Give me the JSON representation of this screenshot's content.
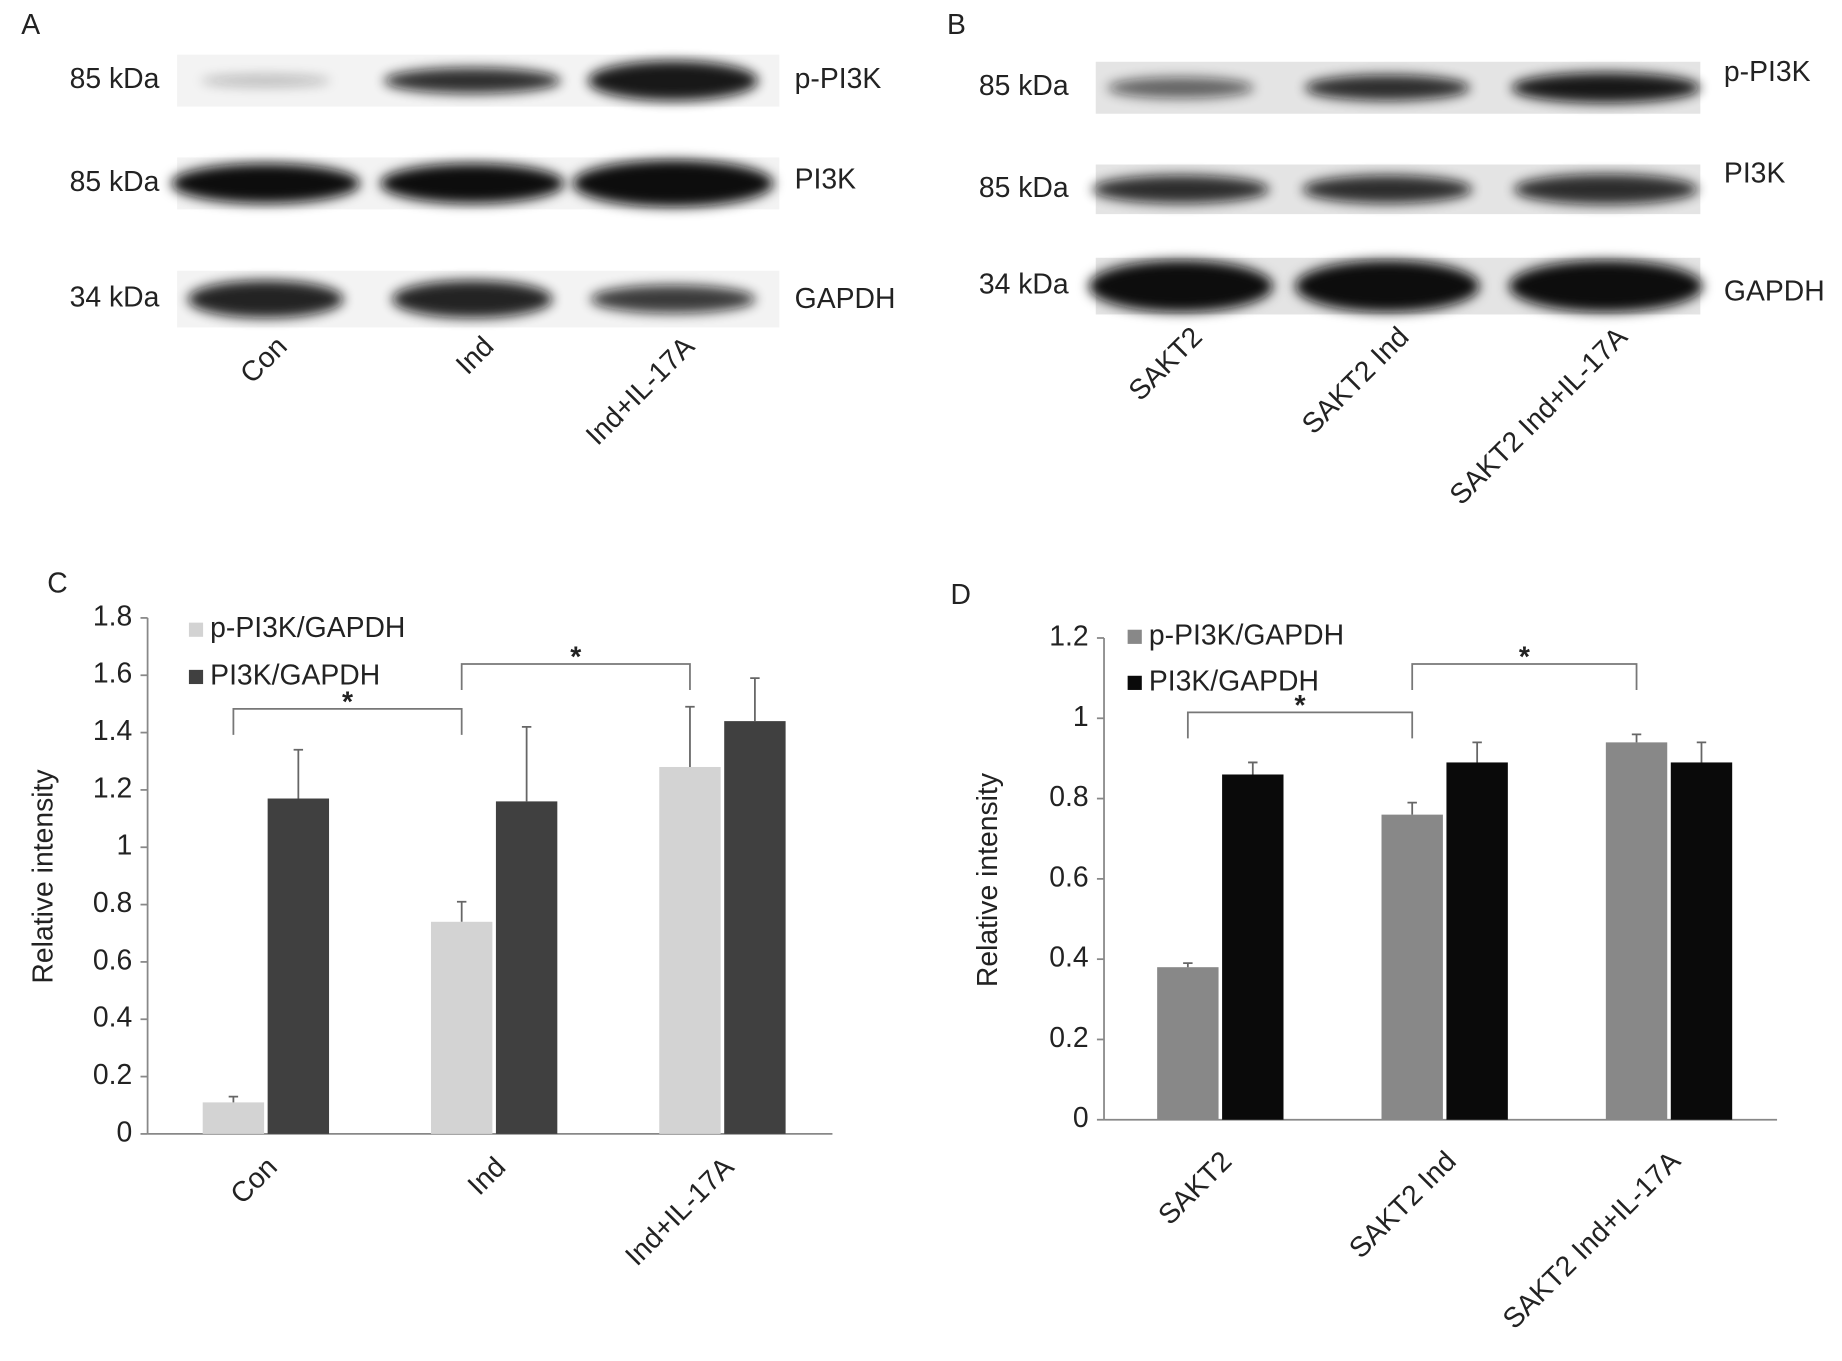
{
  "panels": {
    "A": {
      "label": "A",
      "rows": [
        {
          "kda": "85 kDa",
          "protein": "p-PI3K"
        },
        {
          "kda": "85 kDa",
          "protein": "PI3K"
        },
        {
          "kda": "34 kDa",
          "protein": "GAPDH"
        }
      ],
      "lanes": [
        "Con",
        "Ind",
        "Ind+IL-17A"
      ]
    },
    "B": {
      "label": "B",
      "rows": [
        {
          "kda": "85 kDa",
          "protein": "p-PI3K"
        },
        {
          "kda": "85 kDa",
          "protein": "PI3K"
        },
        {
          "kda": "34 kDa",
          "protein": "GAPDH"
        }
      ],
      "lanes": [
        "SAKT2",
        "SAKT2 Ind",
        "SAKT2 Ind+IL-17A"
      ]
    }
  },
  "chart_data": [
    {
      "type": "bar",
      "panel_label": "C",
      "y_label": "Relative intensity",
      "categories": [
        "Con",
        "Ind",
        "Ind+IL-17A"
      ],
      "series": [
        {
          "name": "p-PI3K/GAPDH",
          "color": "#d3d3d3",
          "values": [
            0.11,
            0.74,
            1.28
          ],
          "errors": [
            0.02,
            0.07,
            0.21
          ]
        },
        {
          "name": "PI3K/GAPDH",
          "color": "#404040",
          "values": [
            1.17,
            1.16,
            1.44
          ],
          "errors": [
            0.17,
            0.26,
            0.15
          ]
        }
      ],
      "ylim": [
        0,
        1.8
      ],
      "yticks": [
        0,
        0.2,
        0.4,
        0.6,
        0.8,
        1,
        1.2,
        1.4,
        1.6,
        1.8
      ],
      "legend": "upper left",
      "annotations": [
        "*",
        "*"
      ]
    },
    {
      "type": "bar",
      "panel_label": "D",
      "y_label": "Relative intensity",
      "categories": [
        "SAKT2",
        "SAKT2 Ind",
        "SAKT2 Ind+IL-17A"
      ],
      "series": [
        {
          "name": "p-PI3K/GAPDH",
          "color": "#888888",
          "values": [
            0.38,
            0.76,
            0.94
          ],
          "errors": [
            0.01,
            0.03,
            0.02
          ]
        },
        {
          "name": "PI3K/GAPDH",
          "color": "#0a0a0a",
          "values": [
            0.86,
            0.89,
            0.89
          ],
          "errors": [
            0.03,
            0.05,
            0.05
          ]
        }
      ],
      "ylim": [
        0,
        1.2
      ],
      "yticks": [
        0,
        0.2,
        0.4,
        0.6,
        0.8,
        1,
        1.2
      ],
      "legend": "upper left",
      "annotations": [
        "*",
        "*"
      ]
    }
  ]
}
